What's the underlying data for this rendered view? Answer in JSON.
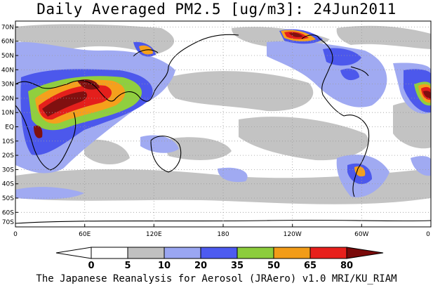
{
  "title": "Daily Averaged PM2.5 [ug/m3]: 24Jun2011",
  "footer": "The Japanese Reanalysis for Aerosol (JRAero) v1.0 MRI/KU_RIAM",
  "lat_labels": [
    "70N",
    "60N",
    "50N",
    "40N",
    "30N",
    "20N",
    "10N",
    "EQ",
    "10S",
    "20S",
    "30S",
    "40S",
    "50S",
    "60S",
    "70S"
  ],
  "lon_labels": [
    "0",
    "60E",
    "120E",
    "180",
    "120W",
    "60W",
    "0"
  ],
  "legend": {
    "values": [
      "0",
      "5",
      "10",
      "20",
      "35",
      "50",
      "65",
      "80"
    ],
    "colors": [
      "#ffffff",
      "#c0c0c0",
      "#9aa6f2",
      "#4d5bf0",
      "#8ccd3c",
      "#f29c18",
      "#e8201c",
      "#7a0a0a"
    ]
  },
  "map_colors": {
    "gray": "#c3c3c3",
    "light_blue": "#a0aaf2",
    "blue": "#4c58ec",
    "green": "#90cf3e",
    "orange": "#f5a01c",
    "red": "#e41f1c",
    "dark_red": "#801010",
    "coast": "#000000",
    "grid": "#9a9a9a"
  }
}
